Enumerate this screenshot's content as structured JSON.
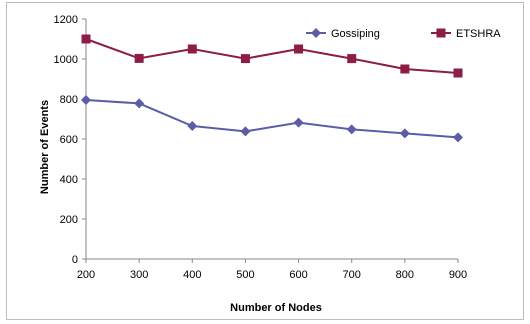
{
  "chart_data": {
    "type": "line",
    "title": "",
    "xlabel": "Number of Nodes",
    "ylabel": "Number of Events",
    "x": [
      200,
      300,
      400,
      500,
      600,
      700,
      800,
      900
    ],
    "xlim": [
      200,
      900
    ],
    "ylim": [
      0,
      1200
    ],
    "yticks": [
      0,
      200,
      400,
      600,
      800,
      1000,
      1200
    ],
    "grid": false,
    "legend_position": "top-right",
    "series": [
      {
        "name": "Gossiping",
        "color": "#5b5ea6",
        "marker": "diamond",
        "values": [
          795,
          778,
          665,
          638,
          682,
          648,
          628,
          608
        ]
      },
      {
        "name": "ETSHRA",
        "color": "#8b1d46",
        "marker": "square",
        "values": [
          1100,
          1003,
          1050,
          1002,
          1050,
          1002,
          950,
          930
        ]
      }
    ]
  }
}
